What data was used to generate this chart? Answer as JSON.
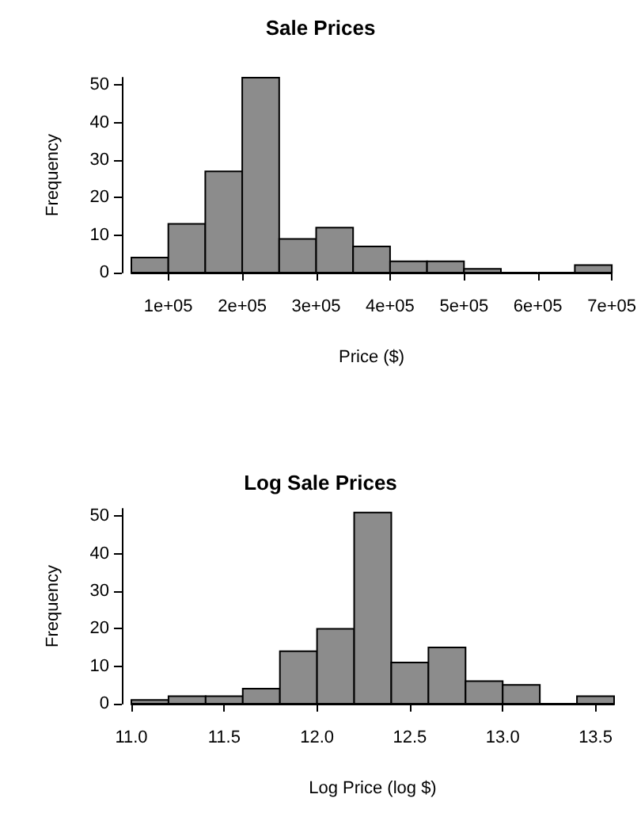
{
  "chart_data": [
    {
      "type": "histogram",
      "title": "Sale Prices",
      "xlabel": "Price ($)",
      "ylabel": "Frequency",
      "color": "#8c8c8c",
      "bins": [
        50000,
        100000,
        150000,
        200000,
        250000,
        300000,
        350000,
        400000,
        450000,
        500000,
        550000,
        600000,
        650000,
        700000
      ],
      "values": [
        4,
        13,
        27,
        52,
        9,
        12,
        7,
        3,
        3,
        1,
        0,
        0,
        2
      ],
      "xlim": [
        50000,
        700000
      ],
      "xticks": [
        {
          "value": 100000,
          "label": "1e+05"
        },
        {
          "value": 200000,
          "label": "2e+05"
        },
        {
          "value": 300000,
          "label": "3e+05"
        },
        {
          "value": 400000,
          "label": "4e+05"
        },
        {
          "value": 500000,
          "label": "5e+05"
        },
        {
          "value": 600000,
          "label": "6e+05"
        },
        {
          "value": 700000,
          "label": "7e+05"
        }
      ],
      "ylim": [
        0,
        52
      ],
      "yticks": [
        0,
        10,
        20,
        30,
        40,
        50
      ]
    },
    {
      "type": "histogram",
      "title": "Log Sale Prices",
      "xlabel": "Log Price (log $)",
      "ylabel": "Frequency",
      "color": "#8c8c8c",
      "bins": [
        11.0,
        11.2,
        11.4,
        11.6,
        11.8,
        12.0,
        12.2,
        12.4,
        12.6,
        12.8,
        13.0,
        13.2,
        13.4,
        13.6
      ],
      "values": [
        1,
        2,
        2,
        4,
        14,
        20,
        51,
        11,
        15,
        6,
        5,
        0,
        2
      ],
      "xlim": [
        11.0,
        13.6
      ],
      "xticks": [
        {
          "value": 11.0,
          "label": "11.0"
        },
        {
          "value": 11.5,
          "label": "11.5"
        },
        {
          "value": 12.0,
          "label": "12.0"
        },
        {
          "value": 12.5,
          "label": "12.5"
        },
        {
          "value": 13.0,
          "label": "13.0"
        },
        {
          "value": 13.5,
          "label": "13.5"
        }
      ],
      "ylim": [
        0,
        52
      ],
      "yticks": [
        0,
        10,
        20,
        30,
        40,
        50
      ]
    }
  ]
}
